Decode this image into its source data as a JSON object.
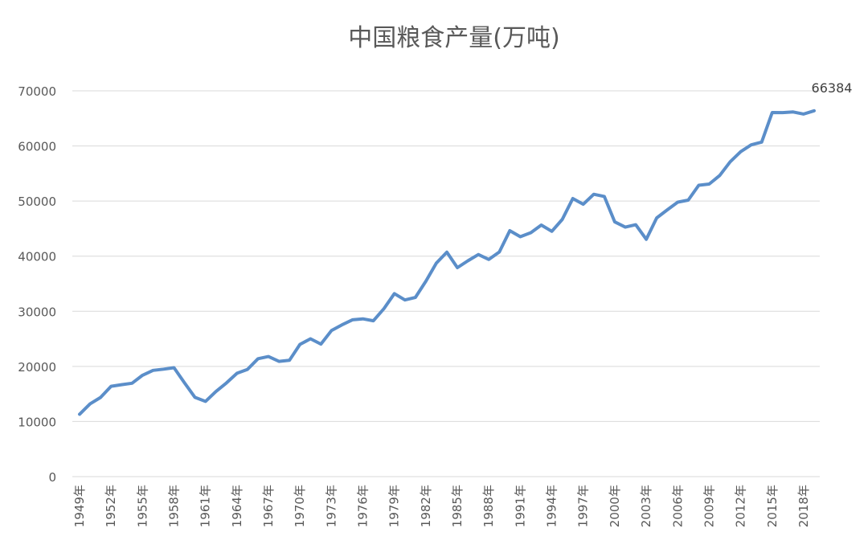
{
  "chart_data": {
    "type": "line",
    "title": "中国粮食产量(万吨)",
    "xlabel": "",
    "ylabel": "",
    "ylim": [
      0,
      70000
    ],
    "yticks": [
      0,
      10000,
      20000,
      30000,
      40000,
      50000,
      60000,
      70000
    ],
    "ytick_labels": [
      "0",
      "10000",
      "20000",
      "30000",
      "40000",
      "50000",
      "60000",
      "70000"
    ],
    "grid": true,
    "legend": "none",
    "x": [
      1949,
      1950,
      1951,
      1952,
      1953,
      1954,
      1955,
      1956,
      1957,
      1958,
      1959,
      1960,
      1961,
      1962,
      1963,
      1964,
      1965,
      1966,
      1967,
      1968,
      1969,
      1970,
      1971,
      1972,
      1973,
      1974,
      1975,
      1976,
      1977,
      1978,
      1979,
      1980,
      1981,
      1982,
      1983,
      1984,
      1985,
      1986,
      1987,
      1988,
      1989,
      1990,
      1991,
      1992,
      1993,
      1994,
      1995,
      1996,
      1997,
      1998,
      1999,
      2000,
      2001,
      2002,
      2003,
      2004,
      2005,
      2006,
      2007,
      2008,
      2009,
      2010,
      2011,
      2012,
      2013,
      2014,
      2015,
      2016,
      2017,
      2018,
      2019
    ],
    "xtick_labels": [
      {
        "year": 1949,
        "label": "1949年"
      },
      {
        "year": 1952,
        "label": "1952年"
      },
      {
        "year": 1955,
        "label": "1955年"
      },
      {
        "year": 1958,
        "label": "1958年"
      },
      {
        "year": 1961,
        "label": "1961年"
      },
      {
        "year": 1964,
        "label": "1964年"
      },
      {
        "year": 1967,
        "label": "1967年"
      },
      {
        "year": 1970,
        "label": "1970年"
      },
      {
        "year": 1973,
        "label": "1973年"
      },
      {
        "year": 1976,
        "label": "1976年"
      },
      {
        "year": 1979,
        "label": "1979年"
      },
      {
        "year": 1982,
        "label": "1982年"
      },
      {
        "year": 1985,
        "label": "1985年"
      },
      {
        "year": 1988,
        "label": "1988年"
      },
      {
        "year": 1991,
        "label": "1991年"
      },
      {
        "year": 1994,
        "label": "1994年"
      },
      {
        "year": 1997,
        "label": "1997年"
      },
      {
        "year": 2000,
        "label": "2000年"
      },
      {
        "year": 2003,
        "label": "2003年"
      },
      {
        "year": 2006,
        "label": "2006年"
      },
      {
        "year": 2009,
        "label": "2009年"
      },
      {
        "year": 2012,
        "label": "2012年"
      },
      {
        "year": 2015,
        "label": "2015年"
      },
      {
        "year": 2018,
        "label": "2018年"
      }
    ],
    "series": [
      {
        "color": "#5b8ec9",
        "values": [
          11318,
          13213,
          14369,
          16392,
          16683,
          16952,
          18394,
          19275,
          19505,
          19765,
          17000,
          14385,
          13650,
          15441,
          17000,
          18750,
          19453,
          21400,
          21782,
          20906,
          21097,
          23996,
          25014,
          24048,
          26494,
          27527,
          28452,
          28631,
          28273,
          30477,
          33212,
          32056,
          32502,
          35450,
          38728,
          40731,
          37911,
          39151,
          40298,
          39408,
          40755,
          44624,
          43529,
          44266,
          45649,
          44510,
          46662,
          50454,
          49417,
          51230,
          50839,
          46218,
          45264,
          45706,
          43070,
          46947,
          48402,
          49804,
          50160,
          52871,
          53082,
          54648,
          57121,
          58958,
          60194,
          60703,
          66060,
          66044,
          66161,
          65789,
          66384
        ]
      }
    ],
    "data_labels": [
      {
        "year": 2019,
        "text": "66384"
      }
    ]
  }
}
